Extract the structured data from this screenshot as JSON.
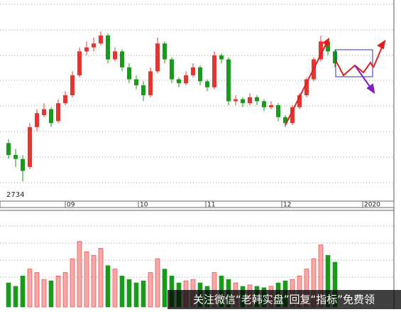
{
  "chart_data": {
    "type": "candlestick",
    "low_label": 2734,
    "xlabels": [
      "09",
      "10",
      "11",
      "12",
      "2020"
    ],
    "ylim": [
      2686,
      3189
    ],
    "up_color": "#e8342f",
    "down_color": "#1a9a1a",
    "candles": [
      [
        2830,
        2840,
        2790,
        2800
      ],
      [
        2800,
        2815,
        2770,
        2790
      ],
      [
        2790,
        2800,
        2734,
        2760
      ],
      [
        2770,
        2880,
        2765,
        2870
      ],
      [
        2870,
        2915,
        2860,
        2905
      ],
      [
        2900,
        2930,
        2895,
        2915
      ],
      [
        2915,
        2920,
        2870,
        2880
      ],
      [
        2885,
        2940,
        2880,
        2930
      ],
      [
        2930,
        2960,
        2925,
        2950
      ],
      [
        2950,
        3010,
        2945,
        3000
      ],
      [
        3000,
        3070,
        2995,
        3060
      ],
      [
        3060,
        3085,
        3050,
        3070
      ],
      [
        3070,
        3095,
        3060,
        3080
      ],
      [
        3080,
        3110,
        3075,
        3100
      ],
      [
        3100,
        3105,
        3030,
        3040
      ],
      [
        3040,
        3070,
        3035,
        3060
      ],
      [
        3060,
        3065,
        3010,
        3020
      ],
      [
        3020,
        3030,
        2980,
        2990
      ],
      [
        2990,
        3000,
        2965,
        2975
      ],
      [
        2975,
        2985,
        2935,
        2950
      ],
      [
        2950,
        3020,
        2945,
        3010
      ],
      [
        3010,
        3095,
        3005,
        3080
      ],
      [
        3080,
        3085,
        3030,
        3040
      ],
      [
        3040,
        3045,
        2980,
        2990
      ],
      [
        2990,
        2995,
        2970,
        2980
      ],
      [
        2980,
        3010,
        2975,
        3000
      ],
      [
        3000,
        3030,
        2995,
        3020
      ],
      [
        3020,
        3025,
        2975,
        2985
      ],
      [
        2985,
        2990,
        2960,
        2970
      ],
      [
        2970,
        3060,
        2965,
        3050
      ],
      [
        3050,
        3055,
        3030,
        3040
      ],
      [
        3040,
        3045,
        2925,
        2935
      ],
      [
        2935,
        2950,
        2925,
        2940
      ],
      [
        2940,
        2945,
        2920,
        2930
      ],
      [
        2930,
        2955,
        2925,
        2945
      ],
      [
        2945,
        2950,
        2925,
        2935
      ],
      [
        2935,
        2940,
        2910,
        2920
      ],
      [
        2920,
        2935,
        2915,
        2925
      ],
      [
        2925,
        2930,
        2885,
        2895
      ],
      [
        2895,
        2900,
        2870,
        2880
      ],
      [
        2880,
        2925,
        2875,
        2920
      ],
      [
        2920,
        2955,
        2915,
        2950
      ],
      [
        2950,
        2995,
        2945,
        2990
      ],
      [
        2990,
        3045,
        2985,
        3040
      ],
      [
        3040,
        3100,
        3035,
        3085
      ],
      [
        3085,
        3090,
        3050,
        3060
      ],
      [
        3060,
        3065,
        3020,
        3030
      ]
    ],
    "vlim": [
      0,
      140
    ],
    "volumes": [
      35,
      30,
      45,
      55,
      50,
      40,
      38,
      45,
      50,
      70,
      95,
      80,
      75,
      85,
      60,
      55,
      45,
      40,
      35,
      38,
      50,
      70,
      55,
      45,
      35,
      38,
      40,
      35,
      30,
      50,
      45,
      40,
      35,
      30,
      32,
      30,
      28,
      30,
      35,
      38,
      40,
      45,
      55,
      70,
      90,
      75,
      65
    ],
    "watermark": "关注微信“老韩实盘”回复“指标”免费领"
  }
}
